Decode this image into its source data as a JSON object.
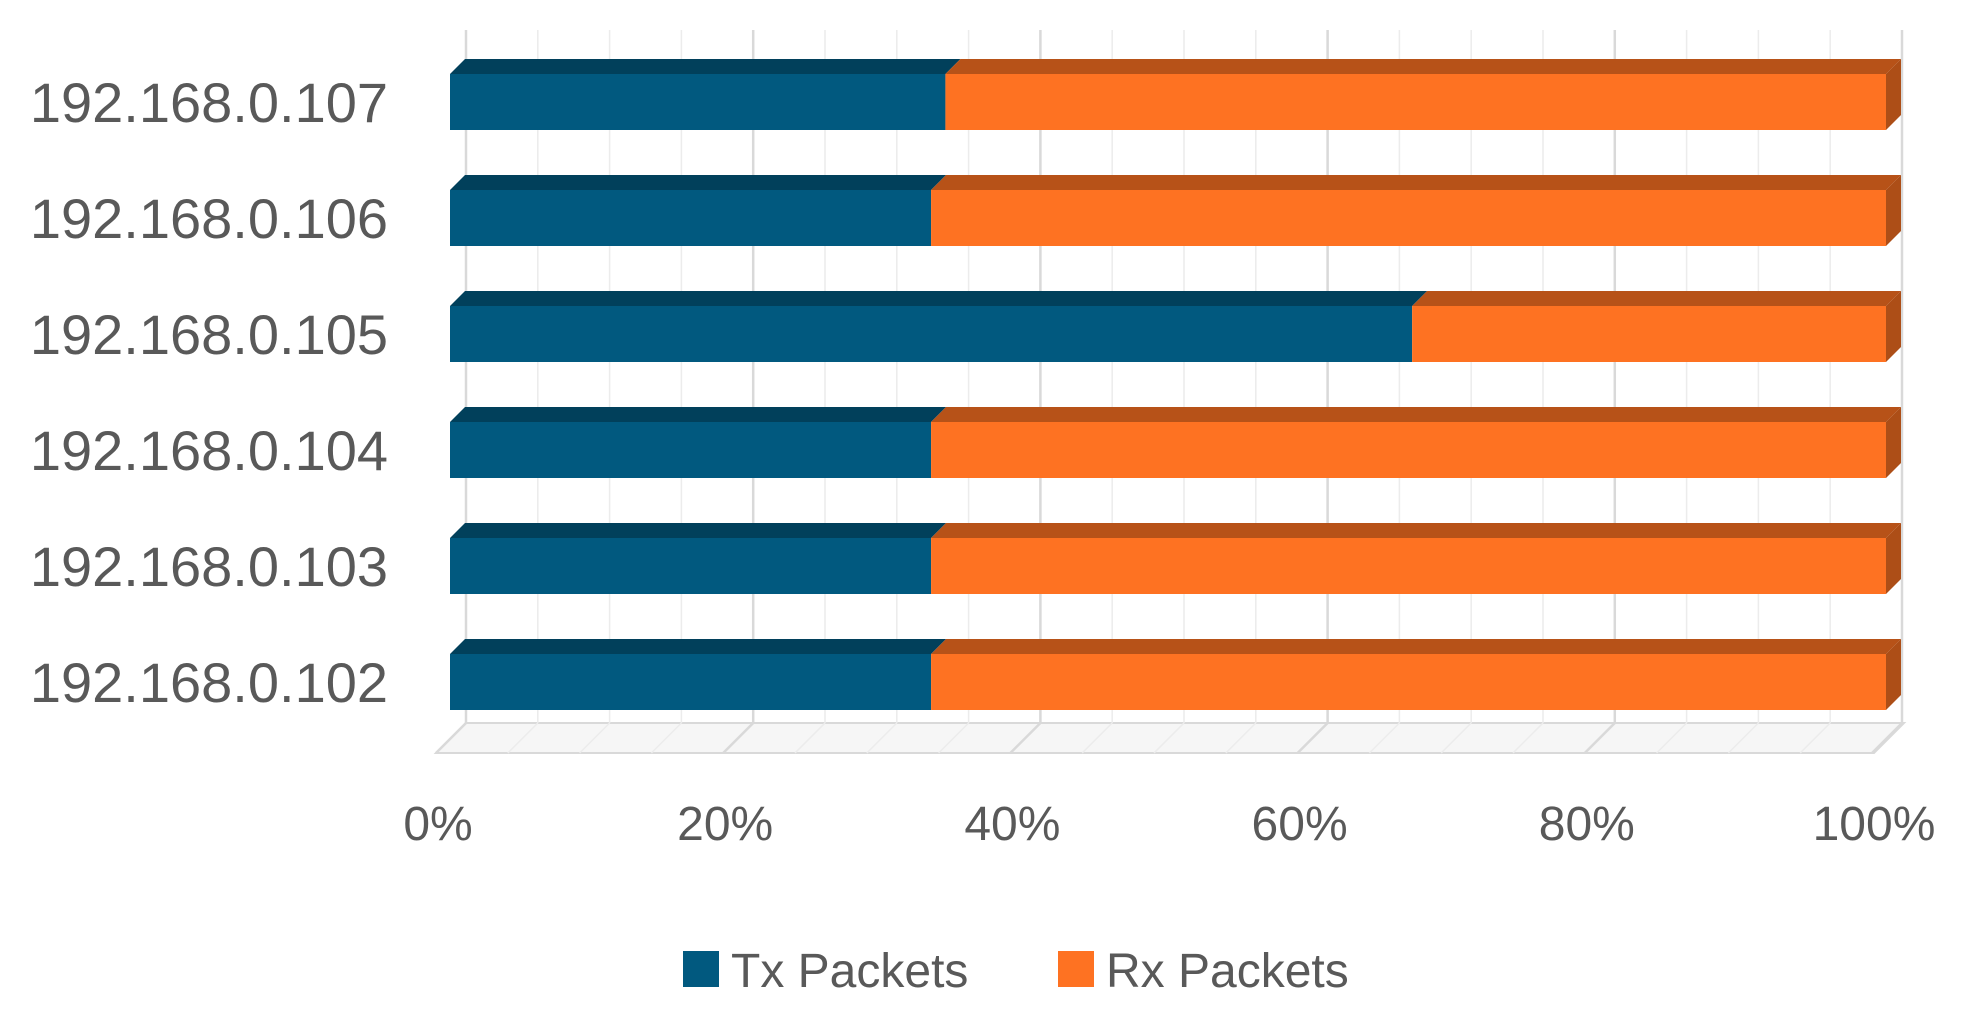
{
  "chart_data": {
    "type": "bar",
    "orientation": "horizontal",
    "stacked": "percent",
    "style": "3d",
    "categories": [
      "192.168.0.107",
      "192.168.0.106",
      "192.168.0.105",
      "192.168.0.104",
      "192.168.0.103",
      "192.168.0.102"
    ],
    "series": [
      {
        "name": "Tx Packets",
        "color": "#01597f",
        "values": [
          34.5,
          33.5,
          67.0,
          33.5,
          33.5,
          33.5
        ]
      },
      {
        "name": "Rx Packets",
        "color": "#fe7222",
        "values": [
          65.5,
          66.5,
          33.0,
          66.5,
          66.5,
          66.5
        ]
      }
    ],
    "x_ticks": [
      "0%",
      "20%",
      "40%",
      "60%",
      "80%",
      "100%"
    ],
    "xlim": [
      0,
      100
    ],
    "grid": true,
    "legend": "bottom"
  }
}
